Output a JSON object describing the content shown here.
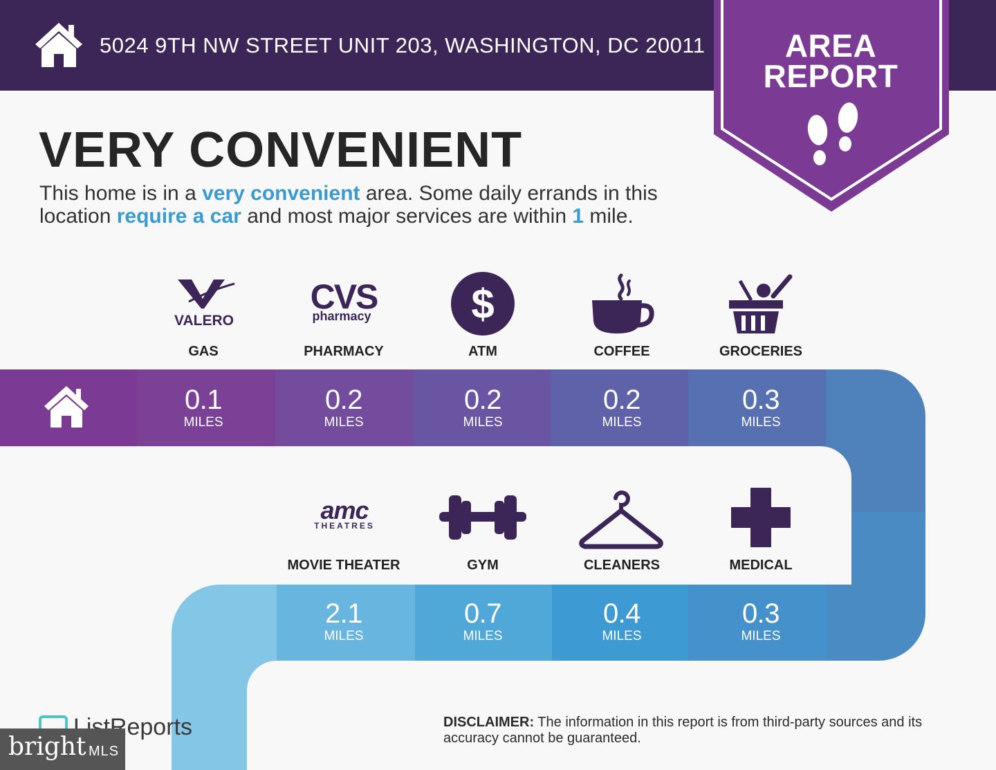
{
  "header": {
    "address": "5024 9TH NW STREET UNIT 203, WASHINGTON, DC 20011",
    "home_icon": "home-icon",
    "badge": {
      "line1": "AREA",
      "line2": "REPORT",
      "icon": "footprints-icon"
    }
  },
  "headline": "VERY CONVENIENT",
  "description": {
    "p1": "This home is in a ",
    "h1": "very convenient",
    "p2": " area. Some daily errands in this location ",
    "h2": "require a car",
    "p3": " and most major services are within ",
    "h3": "1",
    "p4": " mile."
  },
  "row1": [
    {
      "label": "GAS",
      "brand": "VALERO",
      "icon": "valero-logo",
      "value": "0.1",
      "unit": "MILES"
    },
    {
      "label": "PHARMACY",
      "brand": "CVS",
      "brand_sub": "pharmacy",
      "icon": "cvs-logo",
      "value": "0.2",
      "unit": "MILES"
    },
    {
      "label": "ATM",
      "icon": "dollar-icon",
      "glyph": "$",
      "value": "0.2",
      "unit": "MILES"
    },
    {
      "label": "COFFEE",
      "icon": "coffee-cup-icon",
      "value": "0.2",
      "unit": "MILES"
    },
    {
      "label": "GROCERIES",
      "icon": "grocery-basket-icon",
      "value": "0.3",
      "unit": "MILES"
    }
  ],
  "row2": [
    {
      "label": "MOVIE THEATER",
      "brand": "amc",
      "brand_sub": "THEATRES",
      "icon": "amc-logo",
      "value": "2.1",
      "unit": "MILES"
    },
    {
      "label": "GYM",
      "icon": "dumbbell-icon",
      "value": "0.7",
      "unit": "MILES"
    },
    {
      "label": "CLEANERS",
      "icon": "hanger-icon",
      "value": "0.4",
      "unit": "MILES"
    },
    {
      "label": "MEDICAL",
      "icon": "medical-cross-icon",
      "value": "0.3",
      "unit": "MILES"
    }
  ],
  "colors": {
    "header_bg": "#3c2657",
    "badge": "#7b3a93",
    "highlight": "#3b9bd0",
    "icon": "#3c2657"
  },
  "footer": {
    "listreports": "ListReports",
    "bright": "bright",
    "mls": "MLS",
    "disclaimer_label": "DISCLAIMER:",
    "disclaimer_text": " The information in this report is from third-party sources and its accuracy cannot be guaranteed."
  }
}
